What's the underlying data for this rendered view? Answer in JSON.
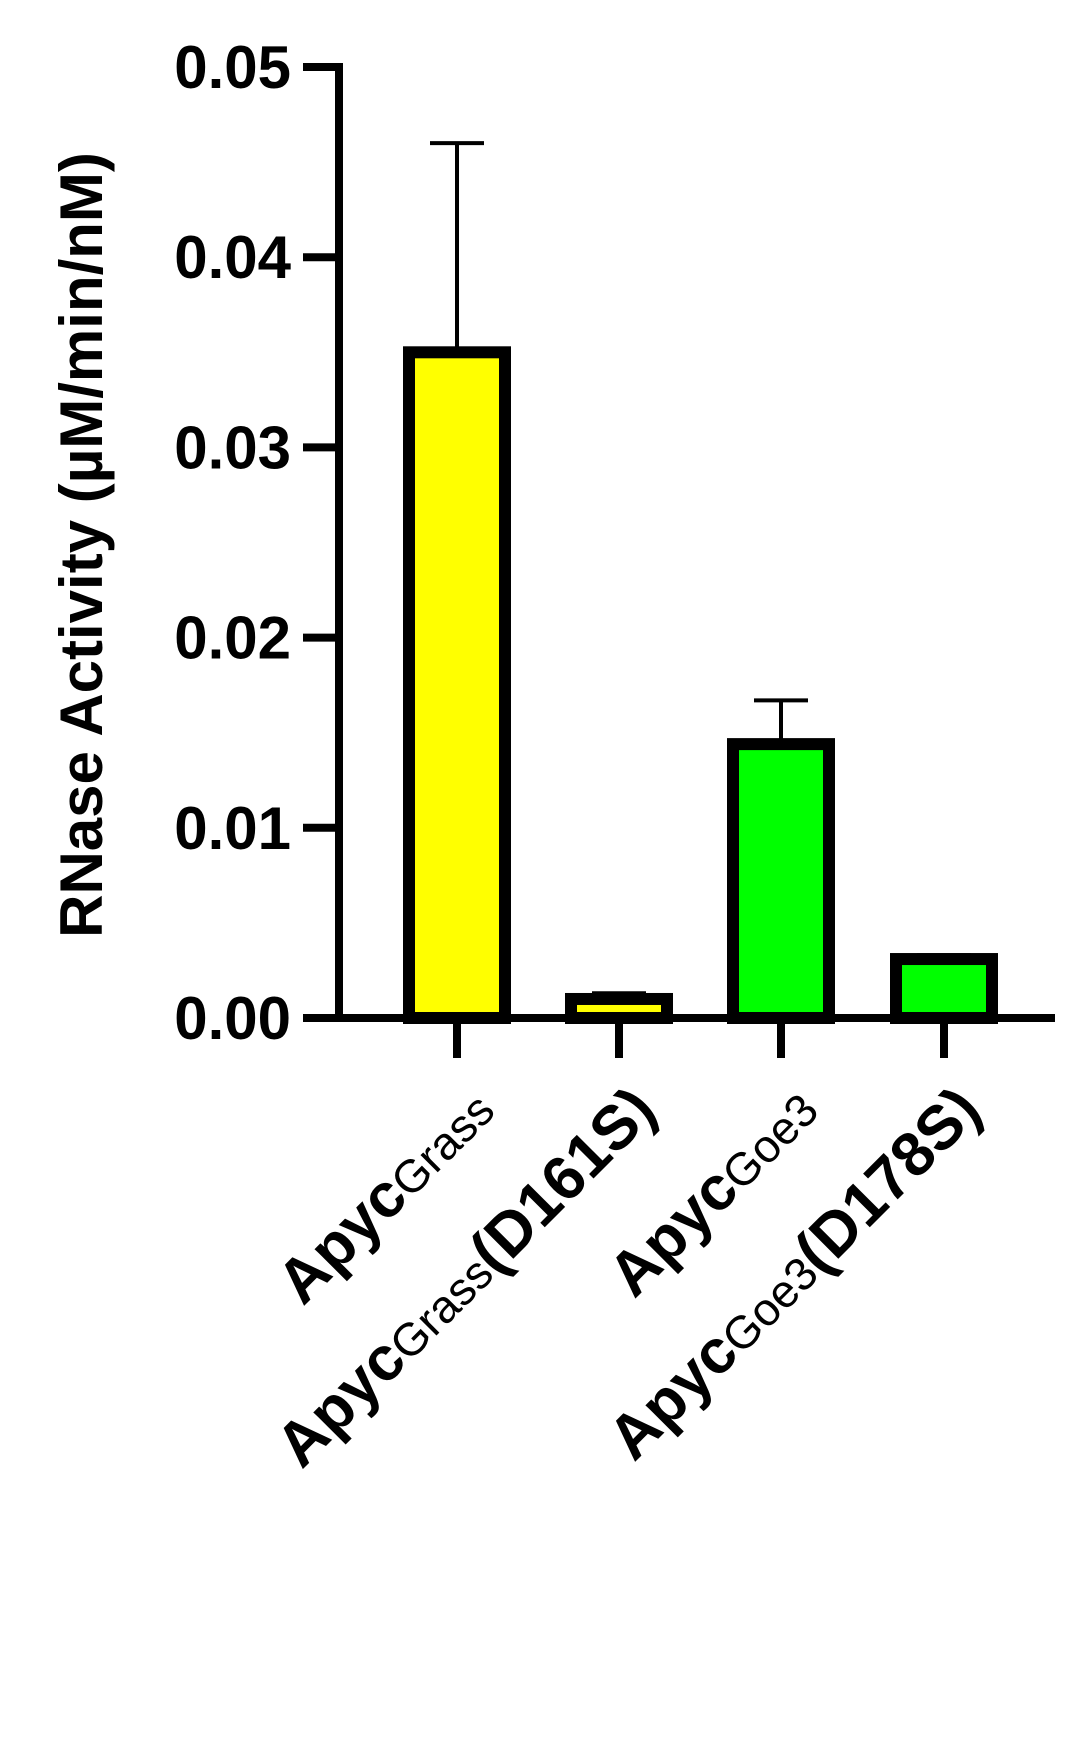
{
  "chart_data": {
    "type": "bar",
    "y_label": "RNase Activity (µM/min/nM)",
    "categories": [
      [
        "Apyc",
        "Grass"
      ],
      [
        "Apyc",
        "Grass",
        "(D161S)"
      ],
      [
        "Apyc",
        "Goe3"
      ],
      [
        "Apyc",
        "Goe3",
        "(D178S)"
      ]
    ],
    "values": [
      0.035,
      0.001,
      0.0144,
      0.0031
    ],
    "errors": [
      0.011,
      0.0003,
      0.0023,
      0.0002
    ],
    "colors": [
      "#ffff00",
      "#ffff00",
      "#00ff00",
      "#00ff00"
    ],
    "ylim": [
      0,
      0.05
    ],
    "yticks": [
      {
        "value": 0,
        "label": "0.00"
      },
      {
        "value": 0.01,
        "label": "0.01"
      },
      {
        "value": 0.02,
        "label": "0.02"
      },
      {
        "value": 0.03,
        "label": "0.03"
      },
      {
        "value": 0.04,
        "label": "0.04"
      },
      {
        "value": 0.05,
        "label": "0.05"
      }
    ]
  }
}
